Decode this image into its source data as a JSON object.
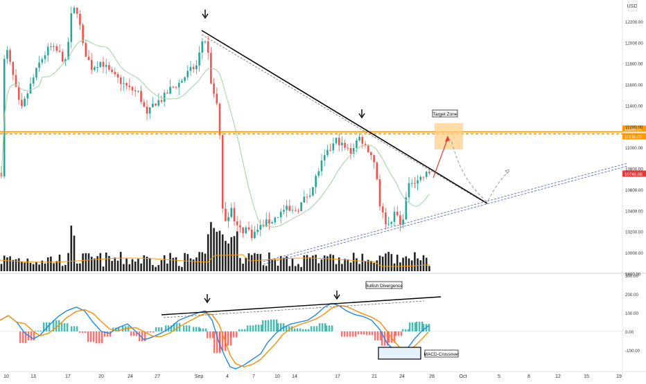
{
  "chart_data": [
    {
      "type": "candlestick",
      "currency": "USD",
      "price_axis": {
        "ticks": [
          12200,
          12000,
          11800,
          11600,
          11400,
          11200,
          11000,
          10800,
          10600,
          10400,
          10200,
          10000,
          9800
        ],
        "tick_labels": [
          "12200.00",
          "12000.00",
          "11800.00",
          "11600.00",
          "11400.00",
          "11200.00",
          "11000.00",
          "10800.00",
          "10600.00",
          "10400.00",
          "10200.00",
          "10000.00",
          "9800.00"
        ],
        "range": [
          9780,
          12390
        ]
      },
      "time_axis": {
        "tick_labels": [
          "10",
          "13",
          "17",
          "20",
          "24",
          "27",
          "Sep",
          "4",
          "7",
          "10",
          "14",
          "17",
          "21",
          "24",
          "28",
          "Oct",
          "5",
          "8",
          "12",
          "15",
          "19"
        ]
      },
      "price_tags": [
        {
          "label": "11150.00",
          "value": 11150,
          "color": "#ff9800"
        },
        {
          "label": "11130.00",
          "value": 11130,
          "color": "#ff9800"
        },
        {
          "label": "10748.06",
          "value": 10748,
          "color": "#e53935"
        }
      ],
      "horizontal_levels": [
        11150,
        11130
      ],
      "annotations": {
        "target_zone": "Target Zone",
        "arrows": 2
      },
      "series": [
        {
          "name": "Price",
          "style": "candles",
          "last": 10748
        },
        {
          "name": "",
          "style": "moving-average",
          "color": "#a5d6a7"
        },
        {
          "name": "",
          "style": "volume",
          "color": "#000000"
        }
      ]
    },
    {
      "type": "line",
      "indicator": "MACD",
      "y_axis": {
        "ticks": [
          300,
          200,
          100,
          0,
          -100
        ],
        "tick_labels": [
          "300.00",
          "200.00",
          "100.00",
          "0.00",
          "-100.00"
        ],
        "range": [
          -145,
          305
        ]
      },
      "annotations": {
        "bullish_divergence": "Bullish Divergence",
        "macd_crossover": "MACD-Crossover",
        "arrows": 2
      },
      "series": [
        {
          "name": "",
          "color": "#1e88e5"
        },
        {
          "name": "",
          "color": "#fb8c00"
        },
        {
          "name": "",
          "style": "histogram",
          "colors": [
            "#26a69a",
            "#ef5350"
          ]
        }
      ]
    }
  ],
  "colors": {
    "up": "#26a69a",
    "down": "#ef5350",
    "resistance": "#ff9800",
    "target_zone": "#ffcc80",
    "trendline": "#000000",
    "support_dash": "#5c6bc0"
  }
}
